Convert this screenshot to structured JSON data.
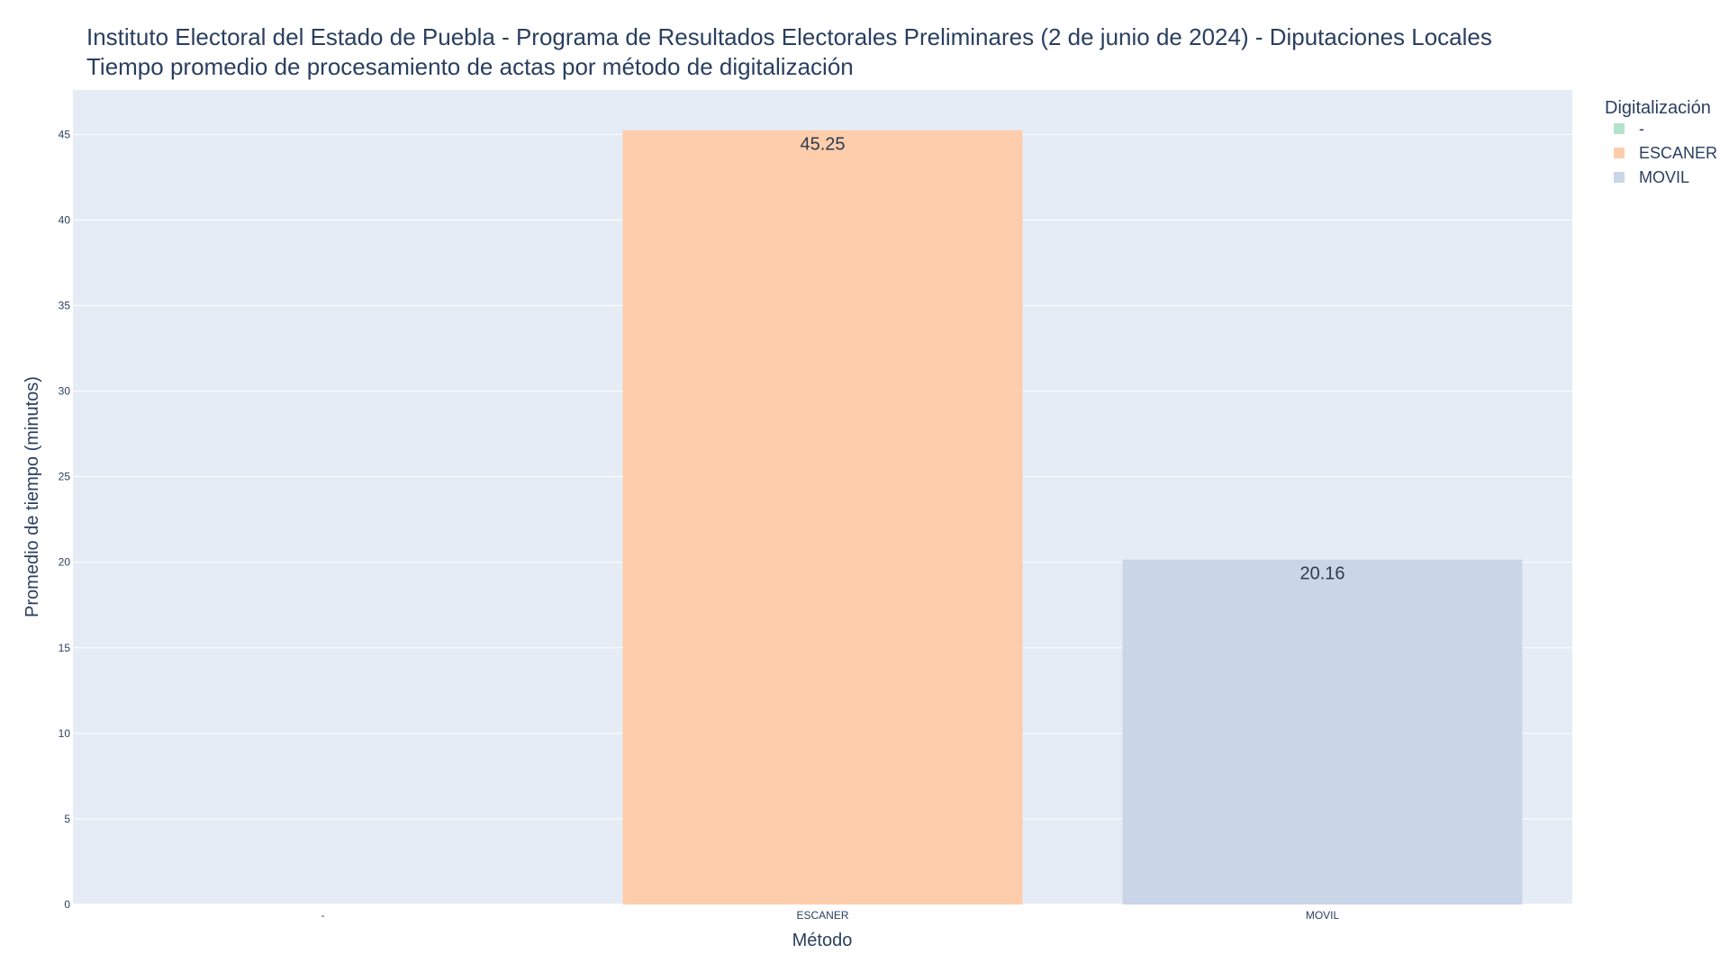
{
  "chart_data": {
    "type": "bar",
    "title": "Instituto Electoral del Estado de Puebla - Programa de Resultados Electorales Preliminares (2 de junio de 2024) - Diputaciones Locales",
    "subtitle": "Tiempo promedio de procesamiento de actas por método de digitalización",
    "xlabel": "Método",
    "ylabel": "Promedio de tiempo (minutos)",
    "categories": [
      "-",
      "ESCANER",
      "MOVIL"
    ],
    "values": [
      0,
      45.25,
      20.16
    ],
    "value_labels": [
      "",
      "45.25",
      "20.16"
    ],
    "colors": [
      "#b3e2cd",
      "#fdcdac",
      "#cbd5e8"
    ],
    "ylim": [
      0,
      47.6
    ],
    "yticks": [
      0,
      5,
      10,
      15,
      20,
      25,
      30,
      35,
      40,
      45
    ],
    "grid": true,
    "plot_background": "#e5ecf6",
    "legend": {
      "title": "Digitalización",
      "position": "top-right",
      "entries": [
        {
          "label": "-",
          "color": "#b3e2cd"
        },
        {
          "label": "ESCANER",
          "color": "#fdcdac"
        },
        {
          "label": "MOVIL",
          "color": "#cbd5e8"
        }
      ]
    }
  }
}
